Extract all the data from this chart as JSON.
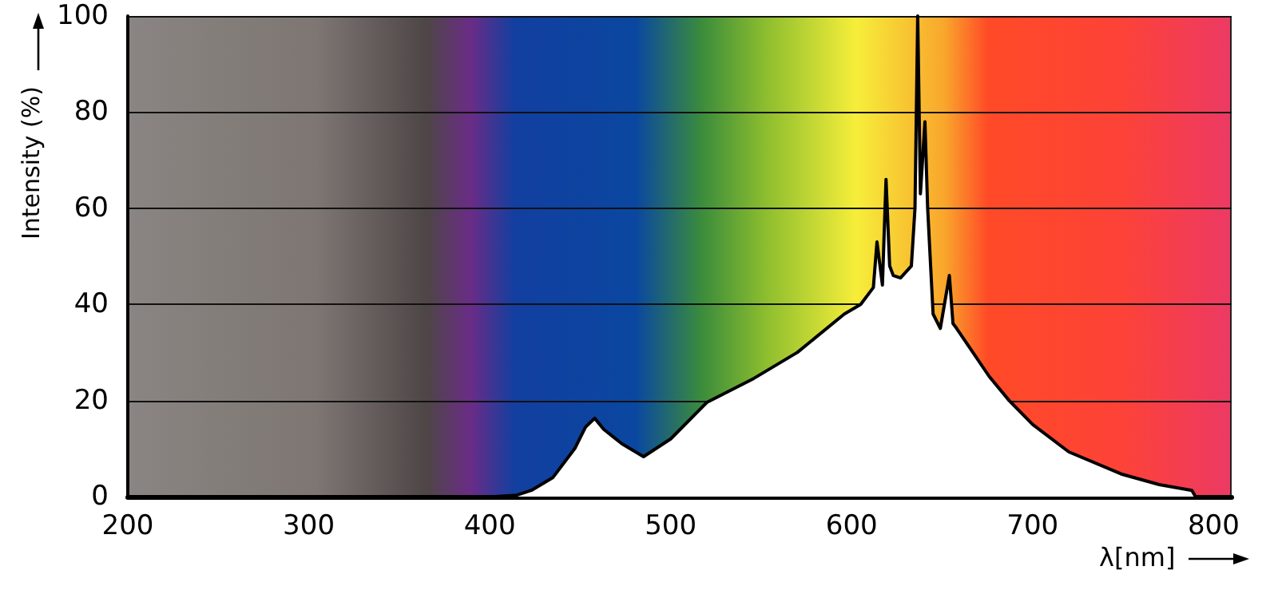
{
  "chart_data": {
    "type": "area",
    "xlabel": "λ[nm]",
    "ylabel": "Intensity (%)",
    "xlim": [
      200,
      810
    ],
    "ylim": [
      0,
      100
    ],
    "xticks": [
      200,
      300,
      400,
      500,
      600,
      700,
      800
    ],
    "yticks": [
      0,
      20,
      40,
      60,
      80,
      100
    ],
    "grid": "y",
    "color": "#000000",
    "x": [
      403,
      415,
      423,
      435,
      447,
      453,
      458,
      463,
      473,
      485,
      500,
      520,
      546,
      570,
      596,
      605,
      612,
      614,
      617,
      619,
      621,
      623,
      627,
      633,
      635,
      636.5,
      638,
      640.5,
      642,
      645,
      649,
      654,
      656,
      658,
      667,
      676,
      687,
      700,
      720,
      749,
      770,
      788,
      790
    ],
    "values": [
      0,
      0.3,
      1.3,
      4,
      10,
      14.5,
      16.3,
      14,
      11,
      8.3,
      12,
      19.6,
      24.6,
      30,
      38,
      40,
      43.5,
      53,
      44,
      66,
      48,
      46,
      45.5,
      48,
      60,
      100,
      63,
      78,
      60,
      38,
      35,
      46,
      36,
      35,
      30,
      25,
      20,
      15,
      9.3,
      4.7,
      2.5,
      1.3,
      0
    ]
  }
}
